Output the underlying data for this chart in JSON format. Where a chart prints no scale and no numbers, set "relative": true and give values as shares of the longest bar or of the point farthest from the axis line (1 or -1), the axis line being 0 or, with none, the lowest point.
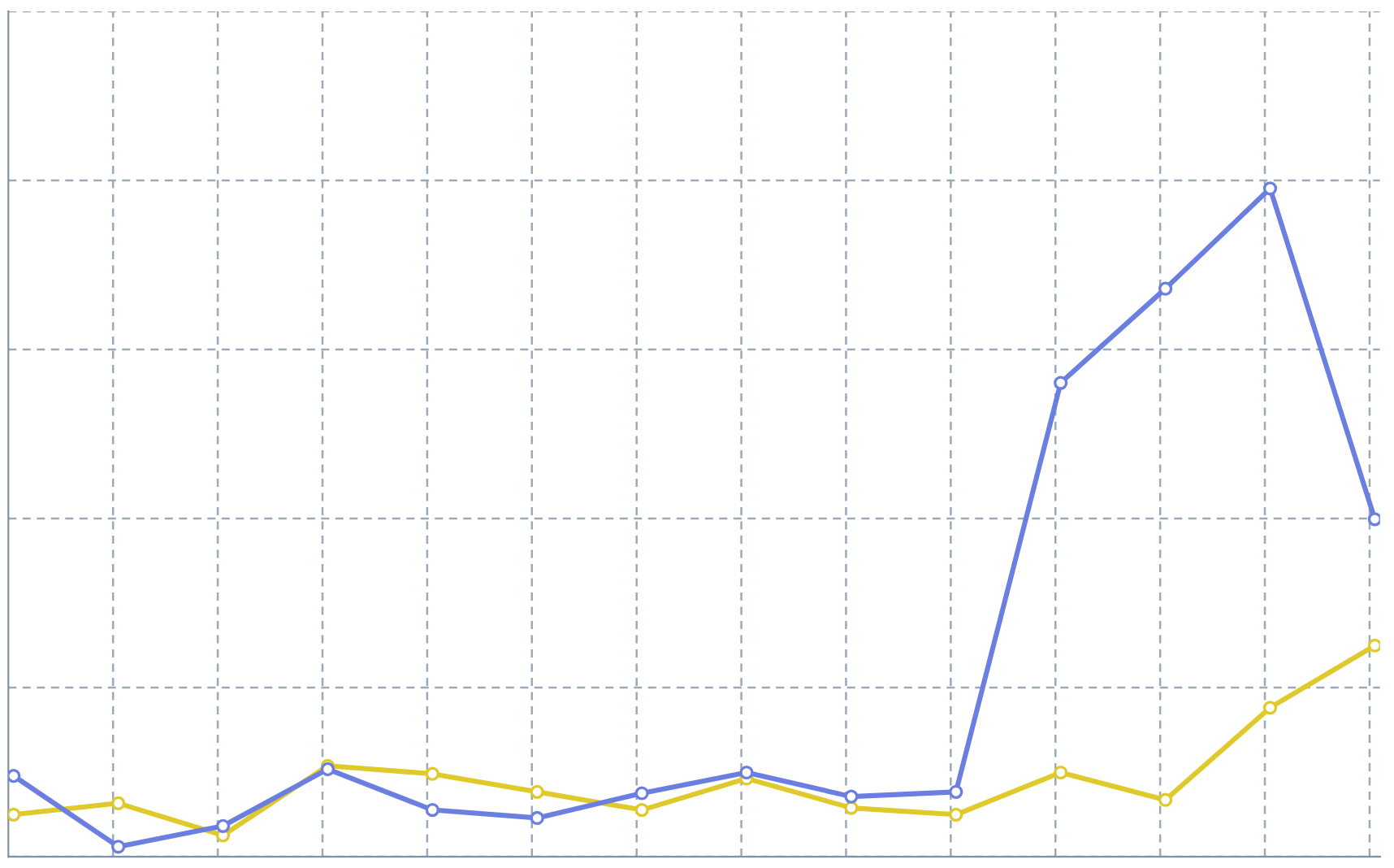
{
  "chart_data": {
    "type": "line",
    "relative": true,
    "grid": true,
    "tick_labels": false,
    "marker": "circle",
    "line_style": "solid",
    "legend": false,
    "categories": [
      null,
      null,
      null,
      null,
      null,
      null,
      null,
      null,
      null,
      null,
      null,
      null,
      null,
      null
    ],
    "series": [
      {
        "color": "#6b7fe0",
        "values": [
          0.121,
          0.015,
          0.046,
          0.131,
          0.07,
          0.058,
          0.095,
          0.126,
          0.09,
          0.097,
          0.709,
          0.85,
          1,
          0.505
        ]
      },
      {
        "color": "#e0c92a",
        "values": [
          0.063,
          0.08,
          0.032,
          0.136,
          0.124,
          0.097,
          0.07,
          0.117,
          0.073,
          0.063,
          0.126,
          0.085,
          0.223,
          0.316
        ]
      }
    ]
  }
}
